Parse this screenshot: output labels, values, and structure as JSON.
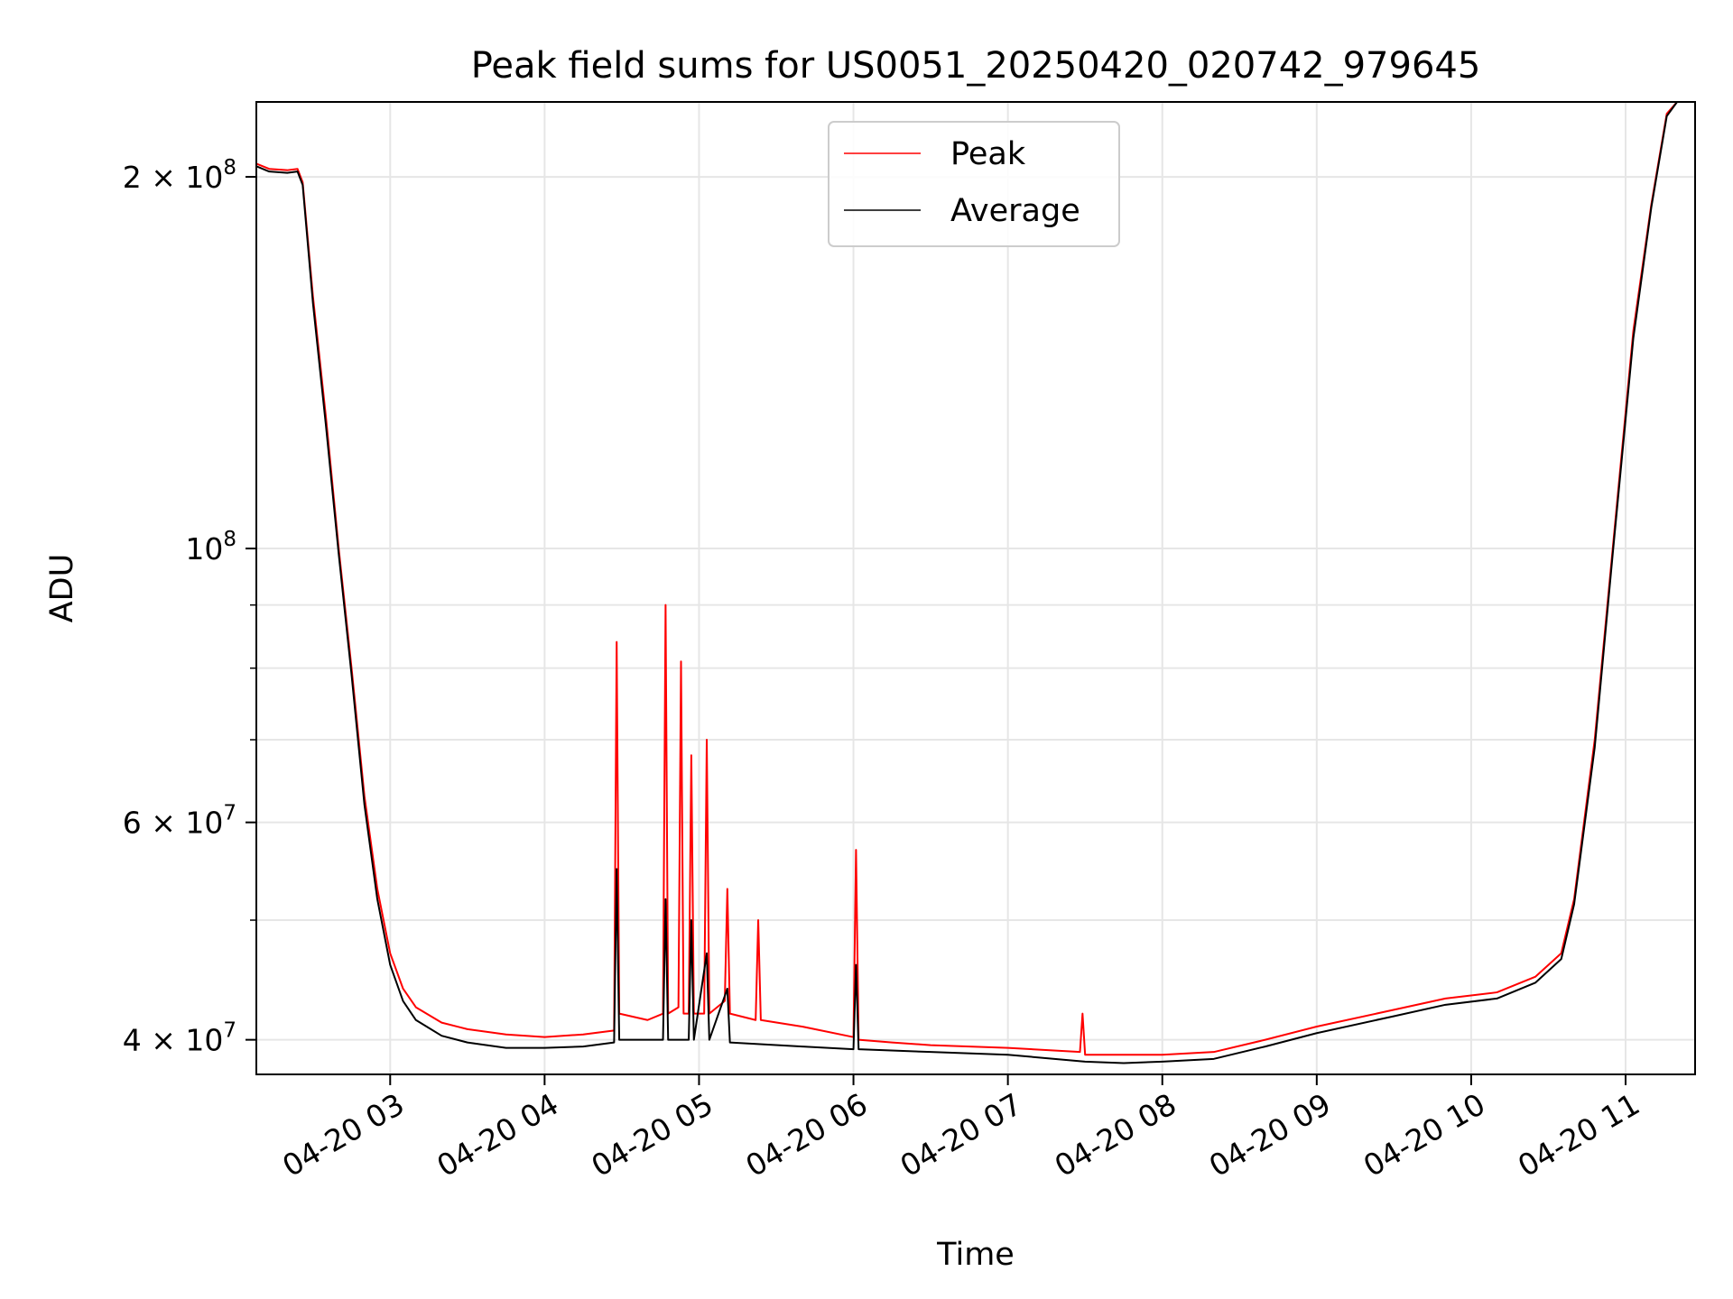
{
  "chart_data": {
    "type": "line",
    "title": "Peak field sums for US0051_20250420_020742_979645",
    "xlabel": "Time",
    "ylabel": "ADU",
    "x_range": [
      "2025-04-20T02:08",
      "2025-04-20T11:27"
    ],
    "ylim": [
      37500000,
      230000000
    ],
    "y_scale": "log",
    "grid": true,
    "legend_position": "top-center",
    "x_tick_labels": [
      "04-20 03",
      "04-20 04",
      "04-20 05",
      "04-20 06",
      "04-20 07",
      "04-20 08",
      "04-20 09",
      "04-20 10",
      "04-20 11"
    ],
    "x_tick_values": [
      "2025-04-20T03:00",
      "2025-04-20T04:00",
      "2025-04-20T05:00",
      "2025-04-20T06:00",
      "2025-04-20T07:00",
      "2025-04-20T08:00",
      "2025-04-20T09:00",
      "2025-04-20T10:00",
      "2025-04-20T11:00"
    ],
    "y_major_ticks": [
      {
        "value": 40000000,
        "mantissa": "4",
        "exponent": "7"
      },
      {
        "value": 60000000,
        "mantissa": "6",
        "exponent": "7"
      },
      {
        "value": 100000000,
        "mantissa": "",
        "exponent": "8"
      },
      {
        "value": 200000000,
        "mantissa": "2",
        "exponent": "8"
      }
    ],
    "y_minor_ticks": [
      50000000,
      70000000,
      80000000,
      90000000
    ],
    "series": [
      {
        "name": "Peak",
        "color": "#ff0000",
        "points": [
          [
            "2025-04-20T02:08",
            205000000
          ],
          [
            "2025-04-20T02:13",
            203000000
          ],
          [
            "2025-04-20T02:20",
            202500000
          ],
          [
            "2025-04-20T02:24",
            203000000
          ],
          [
            "2025-04-20T02:26",
            198000000
          ],
          [
            "2025-04-20T02:30",
            160000000
          ],
          [
            "2025-04-20T02:35",
            128000000
          ],
          [
            "2025-04-20T02:40",
            100000000
          ],
          [
            "2025-04-20T02:45",
            80000000
          ],
          [
            "2025-04-20T02:50",
            63000000
          ],
          [
            "2025-04-20T02:55",
            53000000
          ],
          [
            "2025-04-20T03:00",
            47000000
          ],
          [
            "2025-04-20T03:05",
            44000000
          ],
          [
            "2025-04-20T03:10",
            42500000
          ],
          [
            "2025-04-20T03:20",
            41300000
          ],
          [
            "2025-04-20T03:30",
            40800000
          ],
          [
            "2025-04-20T03:45",
            40400000
          ],
          [
            "2025-04-20T04:00",
            40200000
          ],
          [
            "2025-04-20T04:15",
            40400000
          ],
          [
            "2025-04-20T04:27",
            40700000
          ],
          [
            "2025-04-20T04:28",
            84000000
          ],
          [
            "2025-04-20T04:29",
            42000000
          ],
          [
            "2025-04-20T04:40",
            41500000
          ],
          [
            "2025-04-20T04:46",
            42000000
          ],
          [
            "2025-04-20T04:47",
            90000000
          ],
          [
            "2025-04-20T04:48",
            42000000
          ],
          [
            "2025-04-20T04:52",
            42500000
          ],
          [
            "2025-04-20T04:53",
            81000000
          ],
          [
            "2025-04-20T04:54",
            42000000
          ],
          [
            "2025-04-20T04:56",
            42000000
          ],
          [
            "2025-04-20T04:57",
            68000000
          ],
          [
            "2025-04-20T04:58",
            42000000
          ],
          [
            "2025-04-20T05:02",
            42000000
          ],
          [
            "2025-04-20T05:03",
            70000000
          ],
          [
            "2025-04-20T05:04",
            42000000
          ],
          [
            "2025-04-20T05:10",
            43000000
          ],
          [
            "2025-04-20T05:11",
            53000000
          ],
          [
            "2025-04-20T05:12",
            42000000
          ],
          [
            "2025-04-20T05:22",
            41500000
          ],
          [
            "2025-04-20T05:23",
            50000000
          ],
          [
            "2025-04-20T05:24",
            41500000
          ],
          [
            "2025-04-20T05:40",
            41000000
          ],
          [
            "2025-04-20T06:00",
            40200000
          ],
          [
            "2025-04-20T06:01",
            57000000
          ],
          [
            "2025-04-20T06:02",
            40000000
          ],
          [
            "2025-04-20T06:15",
            39800000
          ],
          [
            "2025-04-20T06:30",
            39600000
          ],
          [
            "2025-04-20T07:00",
            39400000
          ],
          [
            "2025-04-20T07:28",
            39100000
          ],
          [
            "2025-04-20T07:29",
            42000000
          ],
          [
            "2025-04-20T07:30",
            38900000
          ],
          [
            "2025-04-20T07:45",
            38900000
          ],
          [
            "2025-04-20T08:00",
            38900000
          ],
          [
            "2025-04-20T08:20",
            39100000
          ],
          [
            "2025-04-20T08:40",
            40000000
          ],
          [
            "2025-04-20T09:00",
            41000000
          ],
          [
            "2025-04-20T09:30",
            42300000
          ],
          [
            "2025-04-20T09:50",
            43200000
          ],
          [
            "2025-04-20T10:10",
            43700000
          ],
          [
            "2025-04-20T10:25",
            45000000
          ],
          [
            "2025-04-20T10:35",
            47000000
          ],
          [
            "2025-04-20T10:40",
            52000000
          ],
          [
            "2025-04-20T10:48",
            70000000
          ],
          [
            "2025-04-20T10:55",
            100000000
          ],
          [
            "2025-04-20T11:03",
            150000000
          ],
          [
            "2025-04-20T11:10",
            190000000
          ],
          [
            "2025-04-20T11:16",
            225000000
          ],
          [
            "2025-04-20T11:20",
            230000000
          ]
        ]
      },
      {
        "name": "Average",
        "color": "#000000",
        "points": [
          [
            "2025-04-20T02:08",
            204000000
          ],
          [
            "2025-04-20T02:13",
            202000000
          ],
          [
            "2025-04-20T02:20",
            201500000
          ],
          [
            "2025-04-20T02:24",
            202000000
          ],
          [
            "2025-04-20T02:26",
            197000000
          ],
          [
            "2025-04-20T02:30",
            158000000
          ],
          [
            "2025-04-20T02:35",
            126000000
          ],
          [
            "2025-04-20T02:40",
            99000000
          ],
          [
            "2025-04-20T02:45",
            79000000
          ],
          [
            "2025-04-20T02:50",
            62000000
          ],
          [
            "2025-04-20T02:55",
            52000000
          ],
          [
            "2025-04-20T03:00",
            46000000
          ],
          [
            "2025-04-20T03:05",
            43000000
          ],
          [
            "2025-04-20T03:10",
            41500000
          ],
          [
            "2025-04-20T03:20",
            40300000
          ],
          [
            "2025-04-20T03:30",
            39800000
          ],
          [
            "2025-04-20T03:45",
            39400000
          ],
          [
            "2025-04-20T04:00",
            39400000
          ],
          [
            "2025-04-20T04:15",
            39500000
          ],
          [
            "2025-04-20T04:27",
            39800000
          ],
          [
            "2025-04-20T04:28",
            55000000
          ],
          [
            "2025-04-20T04:29",
            40000000
          ],
          [
            "2025-04-20T04:46",
            40000000
          ],
          [
            "2025-04-20T04:47",
            52000000
          ],
          [
            "2025-04-20T04:48",
            40000000
          ],
          [
            "2025-04-20T04:56",
            40000000
          ],
          [
            "2025-04-20T04:57",
            50000000
          ],
          [
            "2025-04-20T04:58",
            40000000
          ],
          [
            "2025-04-20T05:03",
            47000000
          ],
          [
            "2025-04-20T05:04",
            40000000
          ],
          [
            "2025-04-20T05:11",
            44000000
          ],
          [
            "2025-04-20T05:12",
            39800000
          ],
          [
            "2025-04-20T05:40",
            39500000
          ],
          [
            "2025-04-20T06:00",
            39300000
          ],
          [
            "2025-04-20T06:01",
            46000000
          ],
          [
            "2025-04-20T06:02",
            39300000
          ],
          [
            "2025-04-20T06:30",
            39100000
          ],
          [
            "2025-04-20T07:00",
            38900000
          ],
          [
            "2025-04-20T07:30",
            38400000
          ],
          [
            "2025-04-20T07:45",
            38300000
          ],
          [
            "2025-04-20T08:00",
            38400000
          ],
          [
            "2025-04-20T08:20",
            38600000
          ],
          [
            "2025-04-20T08:40",
            39500000
          ],
          [
            "2025-04-20T09:00",
            40500000
          ],
          [
            "2025-04-20T09:30",
            41800000
          ],
          [
            "2025-04-20T09:50",
            42700000
          ],
          [
            "2025-04-20T10:10",
            43200000
          ],
          [
            "2025-04-20T10:25",
            44500000
          ],
          [
            "2025-04-20T10:35",
            46500000
          ],
          [
            "2025-04-20T10:40",
            51500000
          ],
          [
            "2025-04-20T10:48",
            69000000
          ],
          [
            "2025-04-20T10:55",
            99000000
          ],
          [
            "2025-04-20T11:03",
            148000000
          ],
          [
            "2025-04-20T11:10",
            189000000
          ],
          [
            "2025-04-20T11:16",
            224000000
          ],
          [
            "2025-04-20T11:20",
            230000000
          ]
        ]
      }
    ]
  }
}
